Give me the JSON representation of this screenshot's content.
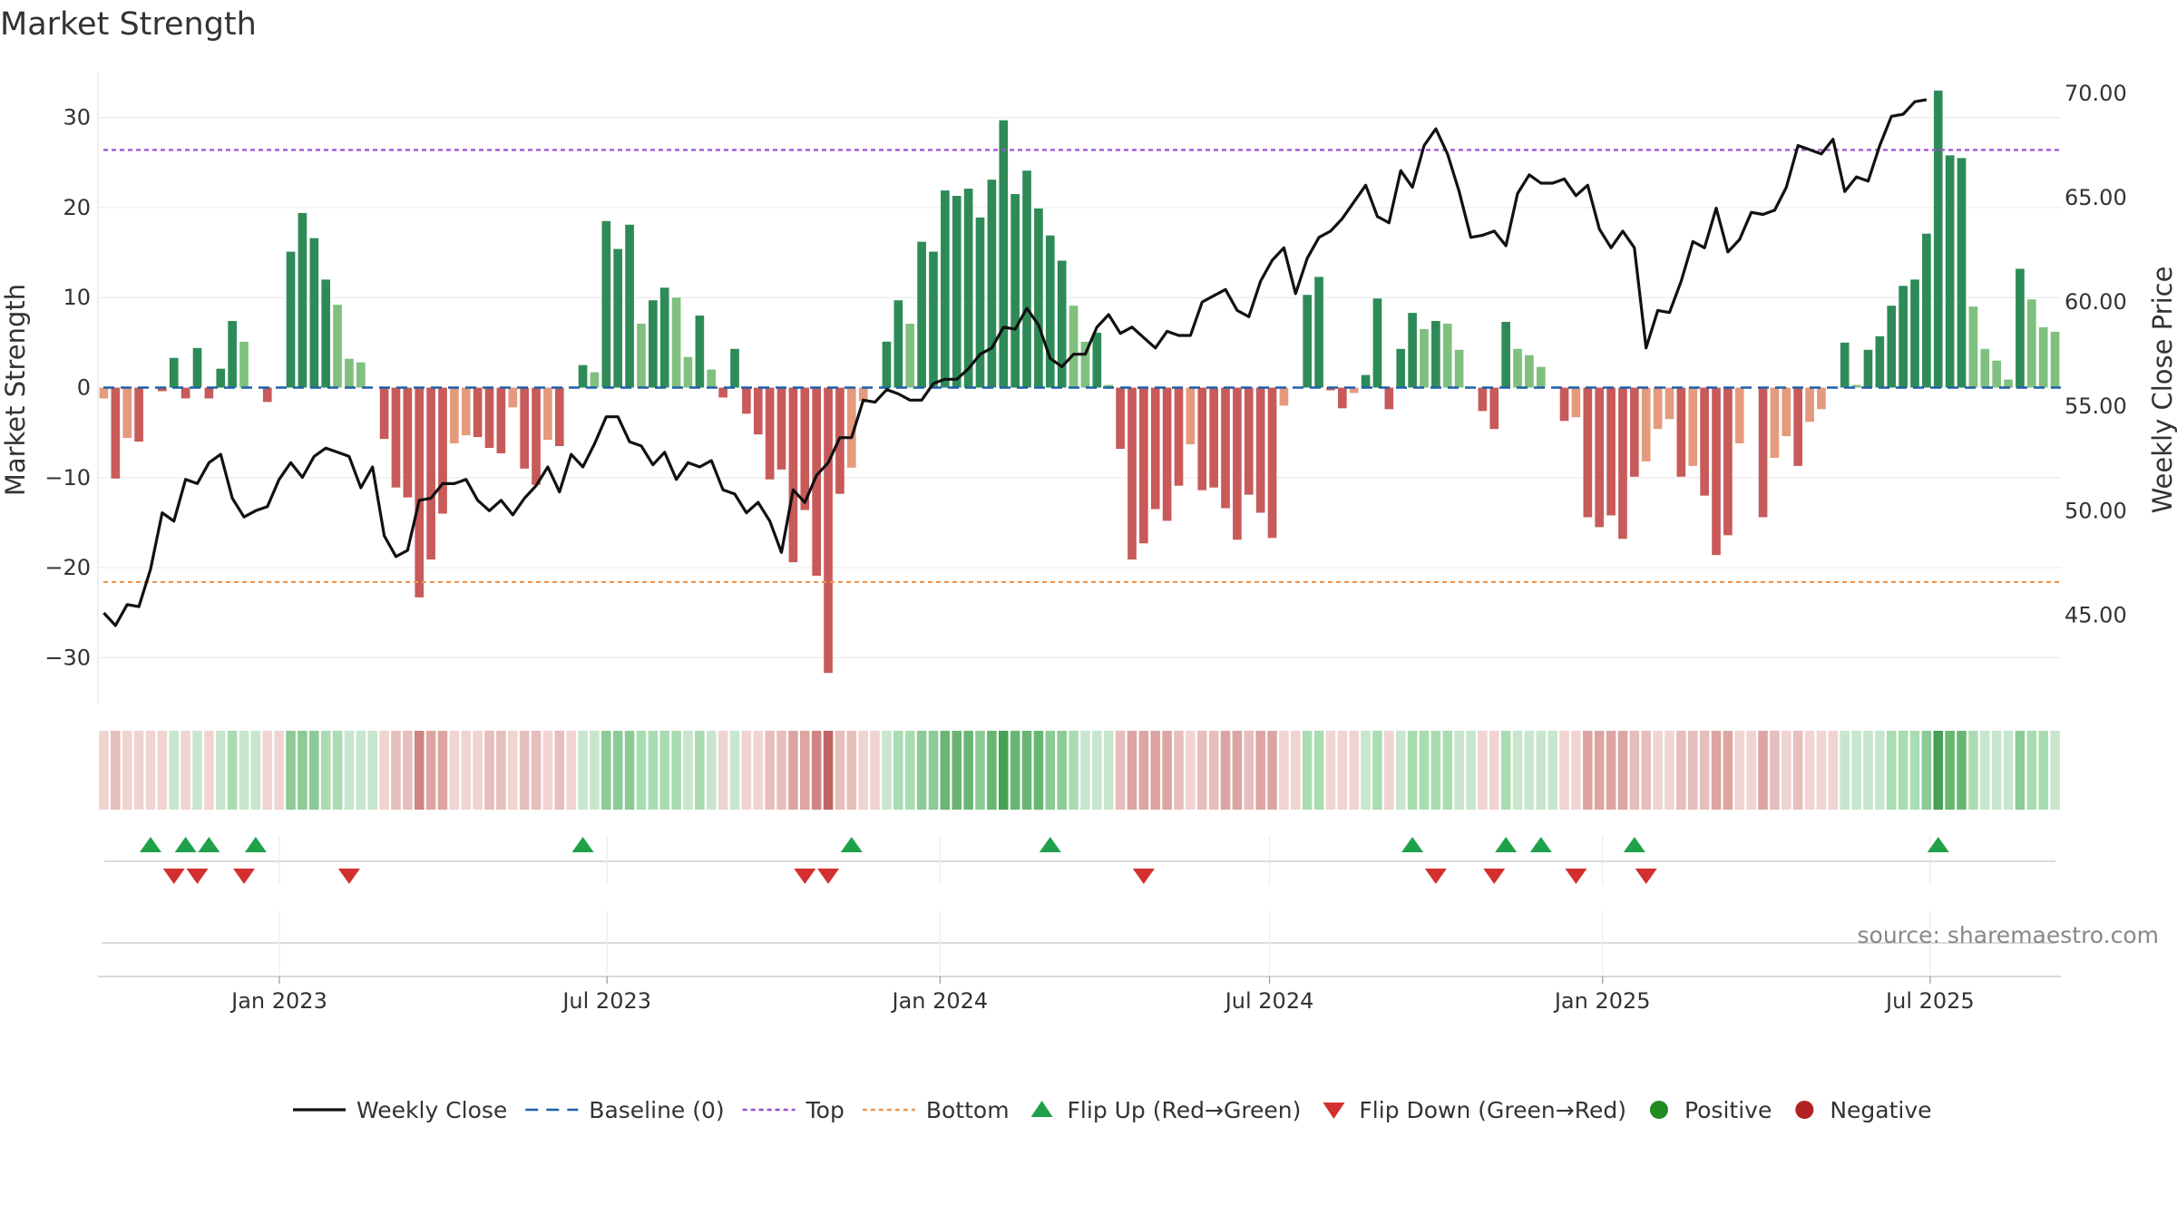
{
  "chart_data": {
    "type": "bar",
    "title": "Market Strength",
    "ylabel_left": "Market Strength",
    "ylabel_right": "Weekly Close Price",
    "ylim_left": [
      -35,
      35
    ],
    "ylim_right": [
      40.8,
      71.0
    ],
    "yticks_left": [
      30,
      20,
      10,
      0,
      -10,
      -20,
      -30
    ],
    "ytick_labels_left": [
      "30",
      "20",
      "10",
      "0",
      "−10",
      "−20",
      "−30"
    ],
    "yticks_right": [
      70,
      65,
      60,
      55,
      50,
      45
    ],
    "ytick_labels_right": [
      "70.00",
      "65.00",
      "60.00",
      "55.00",
      "50.00",
      "45.00"
    ],
    "x_start_week": "2022-09-26",
    "x_end_week": "2025-09-08",
    "xticks": [
      {
        "date": "2023-01-01",
        "label": "Jan 2023"
      },
      {
        "date": "2023-07-01",
        "label": "Jul 2023"
      },
      {
        "date": "2024-01-01",
        "label": "Jan 2024"
      },
      {
        "date": "2024-07-01",
        "label": "Jul 2024"
      },
      {
        "date": "2025-01-01",
        "label": "Jan 2025"
      },
      {
        "date": "2025-07-01",
        "label": "Jul 2025"
      }
    ],
    "top_threshold": 26.4,
    "bottom_threshold": -21.6,
    "strength": [
      -1.2,
      -10.1,
      -5.6,
      -6,
      0,
      -0.4,
      3.3,
      -1.2,
      4.4,
      -1.2,
      2.1,
      7.4,
      5.1,
      0,
      -1.6,
      0,
      15.1,
      19.4,
      16.6,
      12,
      9.2,
      3.2,
      2.8,
      0,
      -5.7,
      -11.1,
      -12.2,
      -23.3,
      -19.1,
      -14,
      -6.2,
      -5.3,
      -5.5,
      -6.7,
      -7.3,
      -2.2,
      -9,
      -10.8,
      -5.8,
      -6.5,
      0,
      2.5,
      1.7,
      18.5,
      15.4,
      18.1,
      7.1,
      9.7,
      11.1,
      10,
      3.4,
      8,
      2,
      -1.1,
      4.3,
      -2.9,
      -5.2,
      -10.2,
      -9.1,
      -19.4,
      -13.6,
      -20.9,
      -31.7,
      -11.8,
      -8.9,
      -1.5,
      0,
      5.1,
      9.7,
      7.1,
      16.2,
      15.1,
      21.9,
      21.3,
      22.1,
      18.9,
      23.1,
      29.7,
      21.5,
      24.1,
      19.9,
      16.9,
      14.1,
      9.1,
      5.1,
      6.1,
      0.3,
      -6.8,
      -19.1,
      -17.3,
      -13.5,
      -14.8,
      -10.9,
      -6.3,
      -11.4,
      -11.1,
      -13.4,
      -16.9,
      -11.9,
      -13.9,
      -16.7,
      -2,
      0,
      10.3,
      12.3,
      -0.3,
      -2.3,
      -0.6,
      1.4,
      9.9,
      -2.4,
      4.3,
      8.3,
      6.5,
      7.4,
      7.1,
      4.2,
      0,
      -2.6,
      -4.6,
      7.3,
      4.3,
      3.6,
      2.3,
      0,
      -3.7,
      -3.3,
      -14.4,
      -15.5,
      -14.2,
      -16.8,
      -9.9,
      -8.2,
      -4.6,
      -3.5,
      -9.9,
      -8.7,
      -12,
      -18.6,
      -16.4,
      -6.2,
      0,
      -14.4,
      -7.8,
      -5.4,
      -8.7,
      -3.8,
      -2.4,
      0,
      5,
      0.3,
      4.2,
      5.7,
      9.1,
      11.3,
      12,
      17.1,
      33,
      25.8,
      25.5,
      9,
      4.3,
      3,
      0.9,
      13.2,
      9.8,
      6.7,
      6.2
    ],
    "weekly_close": [
      45.1,
      44.5,
      45.5,
      45.4,
      47.2,
      49.9,
      49.5,
      51.5,
      51.3,
      52.3,
      52.7,
      50.6,
      49.7,
      50,
      50.2,
      51.5,
      52.3,
      51.6,
      52.6,
      53,
      52.8,
      52.6,
      51.1,
      52.1,
      48.8,
      47.8,
      48.1,
      50.5,
      50.6,
      51.3,
      51.3,
      51.5,
      50.5,
      50,
      50.5,
      49.8,
      50.6,
      51.2,
      52.1,
      50.9,
      52.7,
      52.1,
      53.2,
      54.5,
      54.5,
      53.3,
      53.1,
      52.2,
      52.8,
      51.5,
      52.3,
      52.1,
      52.4,
      51,
      50.8,
      49.9,
      50.4,
      49.5,
      48,
      51,
      50.4,
      51.7,
      52.3,
      53.5,
      53.5,
      55.3,
      55.2,
      55.8,
      55.6,
      55.3,
      55.3,
      56.1,
      56.3,
      56.3,
      56.8,
      57.5,
      57.8,
      58.8,
      58.7,
      59.7,
      58.9,
      57.3,
      56.9,
      57.5,
      57.5,
      58.8,
      59.4,
      58.5,
      58.8,
      58.3,
      57.8,
      58.6,
      58.4,
      58.4,
      60,
      60.3,
      60.6,
      59.6,
      59.3,
      61,
      62,
      62.6,
      60.4,
      62.1,
      63.1,
      63.4,
      64,
      64.8,
      65.6,
      64.1,
      63.8,
      66.3,
      65.5,
      67.5,
      68.3,
      67.1,
      65.3,
      63.1,
      63.2,
      63.4,
      62.7,
      65.2,
      66.1,
      65.7,
      65.7,
      65.9,
      65.1,
      65.6,
      63.5,
      62.6,
      63.4,
      62.6,
      57.8,
      59.6,
      59.5,
      61,
      62.9,
      62.6,
      64.5,
      62.4,
      63,
      64.3,
      64.2,
      64.4,
      65.5,
      67.5,
      67.3,
      67.1,
      67.8,
      65.3,
      66,
      65.8,
      67.5,
      68.9,
      69,
      69.6,
      69.7
    ],
    "heat_strip": "per-week strength shading (green = positive, red = negative, darker = stronger)",
    "flip_up_weeks": [
      4,
      7,
      9,
      13,
      41,
      64,
      81,
      112,
      120,
      123,
      131,
      157
    ],
    "flip_down_weeks": [
      6,
      8,
      12,
      21,
      60,
      62,
      89,
      114,
      119,
      126,
      132
    ],
    "legend": {
      "weekly_close": "Weekly Close",
      "baseline": "Baseline (0)",
      "top": "Top",
      "bottom": "Bottom",
      "flip_up": "Flip Up (Red→Green)",
      "flip_down": "Flip Down (Green→Red)",
      "positive": "Positive",
      "negative": "Negative"
    },
    "colors": {
      "pos_strong": "#2e8b57",
      "pos_weak": "#7fc07f",
      "neg_strong": "#c85a5a",
      "neg_weak": "#e59a7e",
      "line": "#111111",
      "baseline": "#1f5fa8",
      "top": "#9b4fd1",
      "bottom": "#f0954d",
      "flip_up": "#1fa14a",
      "flip_down": "#d32f2f",
      "positive_dot": "#228b22",
      "negative_dot": "#b22222"
    }
  },
  "source": "source: sharemaestro.com"
}
